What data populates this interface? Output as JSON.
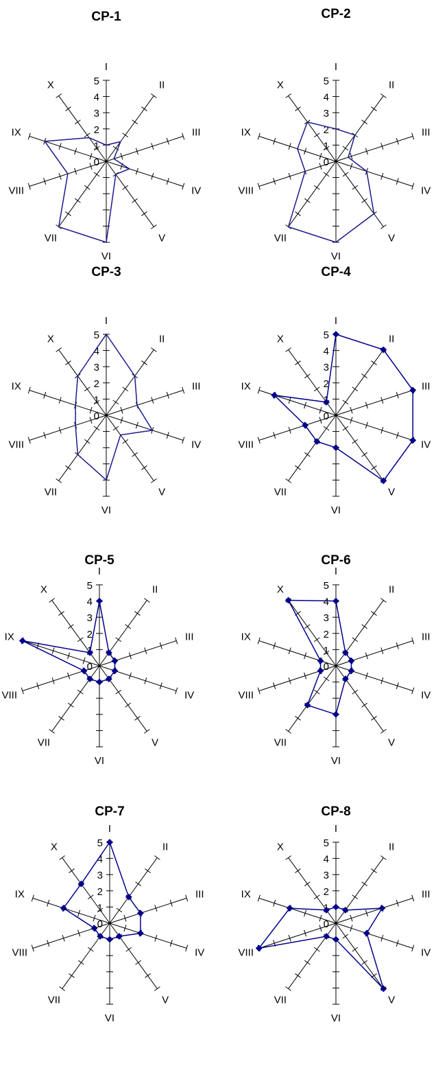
{
  "chart_data": [
    {
      "type": "radar",
      "title": "CP-1",
      "categories": [
        "I",
        "II",
        "III",
        "IV",
        "V",
        "VI",
        "VII",
        "VIII",
        "IX",
        "X"
      ],
      "rticks": [
        "0",
        "1",
        "2",
        "3",
        "4",
        "5"
      ],
      "rlim": [
        0,
        5
      ],
      "series": [
        {
          "values": [
            1,
            1.5,
            0.5,
            1.5,
            1,
            5,
            5,
            2.5,
            4,
            1.8
          ],
          "color": "#1a1a8c",
          "markers": false
        }
      ]
    },
    {
      "type": "radar",
      "title": "CP-2",
      "categories": [
        "I",
        "II",
        "III",
        "IV",
        "V",
        "VI",
        "VII",
        "VIII",
        "IX",
        "X"
      ],
      "rticks": [
        "0",
        "1",
        "2",
        "3",
        "4",
        "5"
      ],
      "rlim": [
        0,
        5
      ],
      "series": [
        {
          "values": [
            2,
            2,
            0.8,
            2,
            4,
            5,
            5,
            2,
            2.5,
            3
          ],
          "color": "#1a1a8c",
          "markers": false
        }
      ]
    },
    {
      "type": "radar",
      "title": "CP-3",
      "categories": [
        "I",
        "II",
        "III",
        "IV",
        "V",
        "VI",
        "VII",
        "VIII",
        "IX",
        "X"
      ],
      "rticks": [
        "0",
        "1",
        "2",
        "3",
        "4",
        "5"
      ],
      "rlim": [
        0,
        5
      ],
      "series": [
        {
          "values": [
            5,
            3,
            2,
            3,
            1.5,
            4,
            3,
            2,
            2,
            3
          ],
          "color": "#1a1a8c",
          "markers": false
        }
      ]
    },
    {
      "type": "radar",
      "title": "CP-4",
      "categories": [
        "I",
        "II",
        "III",
        "IV",
        "V",
        "VI",
        "VII",
        "VIII",
        "IX",
        "X"
      ],
      "rticks": [
        "0",
        "1",
        "2",
        "3",
        "4",
        "5"
      ],
      "rlim": [
        0,
        5
      ],
      "series": [
        {
          "values": [
            5,
            5,
            5,
            5,
            5,
            2,
            2,
            2,
            4,
            1
          ],
          "color": "#00008b",
          "markers": true
        }
      ]
    },
    {
      "type": "radar",
      "title": "CP-5",
      "categories": [
        "I",
        "II",
        "III",
        "IV",
        "V",
        "VI",
        "VII",
        "VIII",
        "IX",
        "X"
      ],
      "rticks": [
        "0",
        "1",
        "2",
        "3",
        "4",
        "5"
      ],
      "rlim": [
        0,
        5
      ],
      "series": [
        {
          "values": [
            4,
            1,
            1,
            1,
            1,
            1,
            1,
            1,
            5,
            1
          ],
          "color": "#00008b",
          "markers": true
        }
      ]
    },
    {
      "type": "radar",
      "title": "CP-6",
      "categories": [
        "I",
        "II",
        "III",
        "IV",
        "V",
        "VI",
        "VII",
        "VIII",
        "IX",
        "X"
      ],
      "rticks": [
        "0",
        "1",
        "2",
        "3",
        "4",
        "5"
      ],
      "rlim": [
        0,
        5
      ],
      "series": [
        {
          "values": [
            4,
            1,
            1,
            1,
            1,
            3,
            3,
            1,
            1,
            5
          ],
          "color": "#00008b",
          "markers": true
        }
      ]
    },
    {
      "type": "radar",
      "title": "CP-7",
      "categories": [
        "I",
        "II",
        "III",
        "IV",
        "V",
        "VI",
        "VII",
        "VIII",
        "IX",
        "X"
      ],
      "rticks": [
        "0",
        "1",
        "2",
        "3",
        "4",
        "5"
      ],
      "rlim": [
        0,
        5
      ],
      "series": [
        {
          "values": [
            5,
            2,
            2,
            2,
            1,
            1,
            1,
            1,
            3,
            3
          ],
          "color": "#00008b",
          "markers": true
        }
      ]
    },
    {
      "type": "radar",
      "title": "CP-8",
      "categories": [
        "I",
        "II",
        "III",
        "IV",
        "V",
        "VI",
        "VII",
        "VIII",
        "IX",
        "X"
      ],
      "rticks": [
        "0",
        "1",
        "2",
        "3",
        "4",
        "5"
      ],
      "rlim": [
        0,
        5
      ],
      "series": [
        {
          "values": [
            1,
            1,
            3,
            2,
            5,
            1,
            1,
            5,
            3,
            1
          ],
          "color": "#00008b",
          "markers": true
        }
      ]
    }
  ]
}
